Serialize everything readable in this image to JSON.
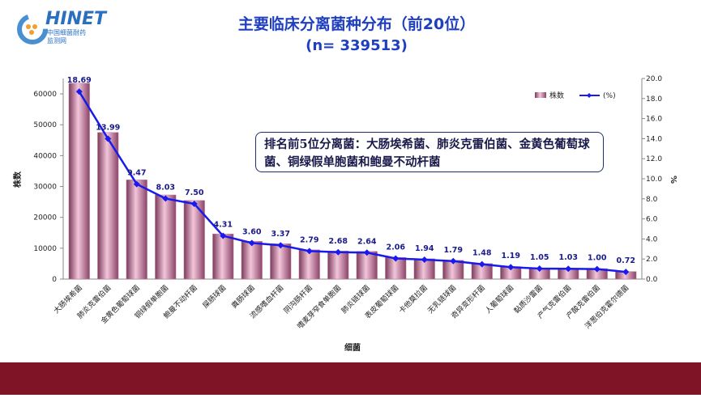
{
  "logo": {
    "name": "HINET",
    "line1": "中国细菌耐药",
    "line2": "监测网"
  },
  "chart_data": {
    "type": "bar-line",
    "title": "主要临床分离菌种分布（前20位）",
    "subtitle": "(n= 339513)",
    "annotation": "排名前5位分离菌：大肠埃希菌、肺炎克雷伯菌、金黄色葡萄球菌、铜绿假单胞菌和鲍曼不动杆菌",
    "x_label": "细菌",
    "y_label": "株数",
    "y2_label": "%",
    "categories": [
      "大肠埃希菌",
      "肺炎克雷伯菌",
      "金黄色葡萄球菌",
      "铜绿假单胞菌",
      "鲍曼不动杆菌",
      "屎肠球菌",
      "粪肠球菌",
      "流感嗜血杆菌",
      "阴沟肠杆菌",
      "嗜麦芽窄食单胞菌",
      "肺炎链球菌",
      "表皮葡萄球菌",
      "卡他莫拉菌",
      "无乳链球菌",
      "奇异变形杆菌",
      "人葡萄球菌",
      "黏质沙雷菌",
      "产气克雷伯菌",
      "产酸克雷伯菌",
      "洋葱伯克霍尔德菌"
    ],
    "series": [
      {
        "name": "株数",
        "color": "#c27a9c",
        "values": [
          63455,
          47498,
          32152,
          27263,
          25463,
          14633,
          12222,
          11442,
          9472,
          9099,
          8963,
          6994,
          6587,
          6077,
          5025,
          4040,
          3565,
          3497,
          3395,
          2444
        ]
      },
      {
        "name": "(%)",
        "color": "#1a1aee",
        "axis": "y2",
        "values": [
          18.69,
          13.99,
          9.47,
          8.03,
          7.5,
          4.31,
          3.6,
          3.37,
          2.79,
          2.68,
          2.64,
          2.06,
          1.94,
          1.79,
          1.48,
          1.19,
          1.05,
          1.03,
          1.0,
          0.72
        ],
        "value_labels": [
          "18.69",
          "13.99",
          "9.47",
          "8.03",
          "7.50",
          "4.31",
          "3.60",
          "3.37",
          "2.79",
          "2.68",
          "2.64",
          "2.06",
          "1.94",
          "1.79",
          "1.48",
          "1.19",
          "1.05",
          "1.03",
          "1.00",
          "0.72"
        ]
      }
    ],
    "ylim": [
      0,
      65000
    ],
    "yticks": [
      0,
      10000,
      20000,
      30000,
      40000,
      50000,
      60000
    ],
    "y2lim": [
      0,
      20
    ],
    "y2ticks": [
      {
        "value": 0,
        "label": "0.0"
      },
      {
        "value": 2,
        "label": "2.0"
      },
      {
        "value": 4,
        "label": "4.0"
      },
      {
        "value": 6,
        "label": "6.0"
      },
      {
        "value": 8,
        "label": "8.0"
      },
      {
        "value": 10,
        "label": "10.0"
      },
      {
        "value": 12,
        "label": "12.0"
      },
      {
        "value": 14,
        "label": "14.0"
      },
      {
        "value": 16,
        "label": "16.0"
      },
      {
        "value": 18,
        "label": "18.0"
      },
      {
        "value": 20,
        "label": "20.0"
      }
    ],
    "legend": "upper right",
    "grid": false
  }
}
